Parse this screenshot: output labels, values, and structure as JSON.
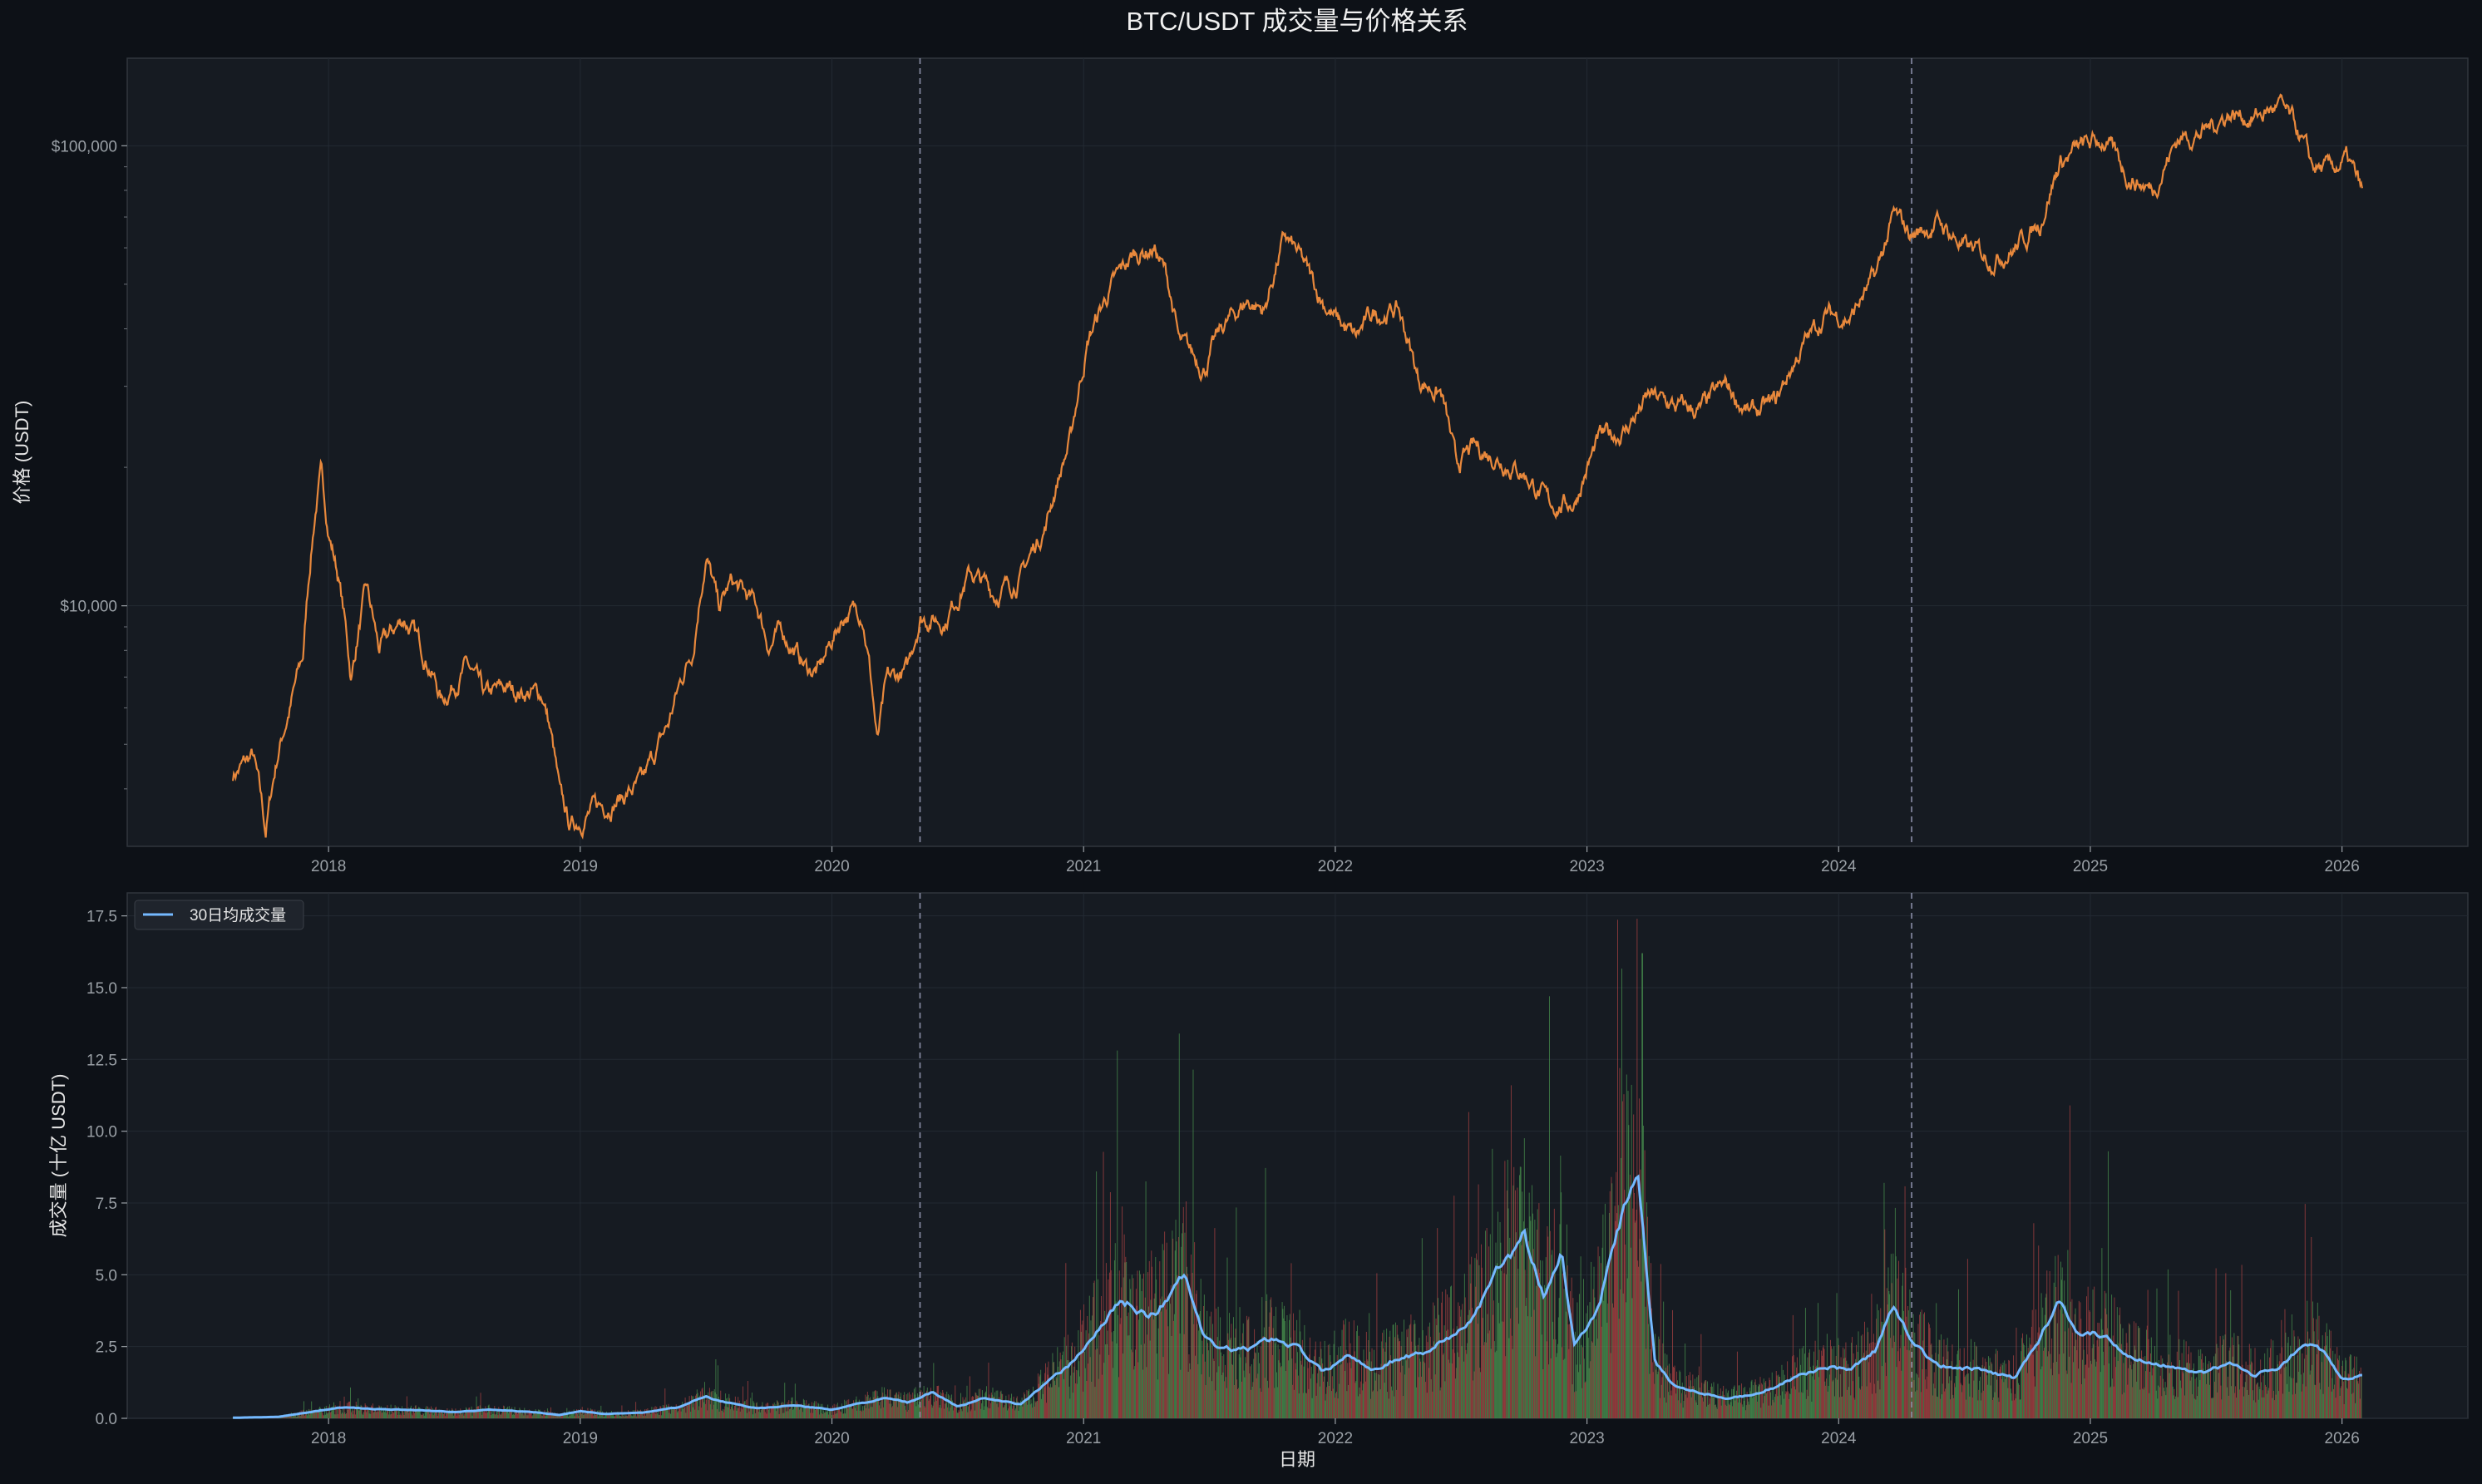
{
  "chart_data": {
    "title": "BTC/USDT 成交量与价格关系",
    "xlabel": "日期",
    "x_ticks": [
      "2018",
      "2019",
      "2020",
      "2021",
      "2022",
      "2023",
      "2024",
      "2025",
      "2026"
    ],
    "x_tick_years": [
      2018,
      2019,
      2020,
      2021,
      2022,
      2023,
      2024,
      2025,
      2026
    ],
    "x_range": [
      2017.2,
      2026.5
    ],
    "vlines": [
      2020.35,
      2024.29
    ],
    "colors": {
      "price": "#e8883c",
      "volume_avg": "#74b9ff",
      "volume_up": "#4c9a52",
      "volume_down": "#b54545",
      "plot_bg": "#161b22",
      "fig_bg": "#0d1117",
      "vline": "#8b8fa8"
    },
    "charts": [
      {
        "type": "line",
        "scale": "log",
        "ylabel": "价格 (USDT)",
        "y_ticks": [
          "$10,000",
          "$100,000"
        ],
        "y_tick_values": [
          10000,
          100000
        ],
        "ylim": [
          3000,
          155000
        ],
        "series": [
          {
            "values": [
              [
                2017.62,
                4300
              ],
              [
                2017.7,
                4700
              ],
              [
                2017.75,
                3200
              ],
              [
                2017.8,
                4800
              ],
              [
                2017.85,
                6100
              ],
              [
                2017.9,
                7800
              ],
              [
                2017.95,
                16500
              ],
              [
                2017.97,
                19200
              ],
              [
                2018.0,
                14500
              ],
              [
                2018.04,
                11500
              ],
              [
                2018.09,
                6900
              ],
              [
                2018.15,
                10800
              ],
              [
                2018.2,
                8000
              ],
              [
                2018.3,
                9400
              ],
              [
                2018.4,
                7500
              ],
              [
                2018.45,
                6200
              ],
              [
                2018.55,
                7400
              ],
              [
                2018.62,
                6300
              ],
              [
                2018.7,
                6600
              ],
              [
                2018.85,
                6400
              ],
              [
                2018.88,
                5400
              ],
              [
                2018.92,
                3800
              ],
              [
                2018.96,
                3300
              ],
              [
                2019.05,
                3600
              ],
              [
                2019.15,
                3800
              ],
              [
                2019.25,
                4100
              ],
              [
                2019.35,
                5500
              ],
              [
                2019.45,
                8200
              ],
              [
                2019.5,
                12900
              ],
              [
                2019.55,
                9800
              ],
              [
                2019.6,
                11200
              ],
              [
                2019.7,
                10000
              ],
              [
                2019.75,
                8200
              ],
              [
                2019.8,
                8800
              ],
              [
                2019.9,
                7300
              ],
              [
                2019.95,
                7200
              ],
              [
                2020.05,
                9600
              ],
              [
                2020.12,
                9800
              ],
              [
                2020.18,
                5000
              ],
              [
                2020.22,
                6800
              ],
              [
                2020.3,
                7200
              ],
              [
                2020.35,
                9500
              ],
              [
                2020.45,
                9300
              ],
              [
                2020.55,
                11800
              ],
              [
                2020.65,
                10600
              ],
              [
                2020.75,
                11500
              ],
              [
                2020.85,
                15000
              ],
              [
                2020.95,
                23000
              ],
              [
                2021.02,
                38000
              ],
              [
                2021.1,
                48000
              ],
              [
                2021.2,
                58000
              ],
              [
                2021.28,
                60000
              ],
              [
                2021.33,
                52000
              ],
              [
                2021.38,
                37000
              ],
              [
                2021.48,
                33000
              ],
              [
                2021.55,
                40000
              ],
              [
                2021.65,
                46000
              ],
              [
                2021.72,
                44000
              ],
              [
                2021.8,
                63000
              ],
              [
                2021.85,
                58000
              ],
              [
                2021.93,
                48000
              ],
              [
                2022.0,
                42000
              ],
              [
                2022.08,
                38000
              ],
              [
                2022.15,
                43000
              ],
              [
                2022.25,
                44000
              ],
              [
                2022.33,
                31000
              ],
              [
                2022.42,
                29000
              ],
              [
                2022.48,
                20000
              ],
              [
                2022.55,
                22000
              ],
              [
                2022.65,
                21000
              ],
              [
                2022.75,
                19500
              ],
              [
                2022.85,
                16500
              ],
              [
                2022.95,
                16800
              ],
              [
                2023.05,
                23000
              ],
              [
                2023.15,
                24000
              ],
              [
                2023.25,
                28500
              ],
              [
                2023.35,
                27000
              ],
              [
                2023.45,
                26500
              ],
              [
                2023.55,
                30000
              ],
              [
                2023.65,
                26000
              ],
              [
                2023.75,
                27500
              ],
              [
                2023.85,
                36000
              ],
              [
                2023.95,
                43000
              ],
              [
                2024.05,
                42500
              ],
              [
                2024.15,
                52000
              ],
              [
                2024.22,
                70000
              ],
              [
                2024.29,
                64000
              ],
              [
                2024.4,
                68000
              ],
              [
                2024.5,
                60000
              ],
              [
                2024.6,
                57000
              ],
              [
                2024.7,
                60000
              ],
              [
                2024.8,
                68000
              ],
              [
                2024.88,
                92000
              ],
              [
                2024.95,
                98000
              ],
              [
                2025.05,
                103000
              ],
              [
                2025.15,
                86000
              ],
              [
                2025.25,
                80000
              ],
              [
                2025.35,
                104000
              ],
              [
                2025.45,
                107000
              ],
              [
                2025.55,
                118000
              ],
              [
                2025.65,
                115000
              ],
              [
                2025.75,
                122000
              ],
              [
                2025.82,
                108000
              ],
              [
                2025.88,
                90000
              ],
              [
                2025.95,
                88000
              ],
              [
                2026.02,
                93000
              ],
              [
                2026.08,
                79000
              ]
            ]
          }
        ]
      },
      {
        "type": "bar+line",
        "ylabel": "成交量 (十亿 USDT)",
        "y_ticks": [
          "0.0",
          "2.5",
          "5.0",
          "7.5",
          "10.0",
          "12.5",
          "15.0",
          "17.5"
        ],
        "y_tick_values": [
          0,
          2.5,
          5,
          7.5,
          10,
          12.5,
          15,
          17.5
        ],
        "ylim": [
          0,
          18.3
        ],
        "legend": {
          "position": "top-left",
          "entries": [
            "30日均成交量"
          ]
        },
        "series": [
          {
            "name": "30日均成交量",
            "values": [
              [
                2017.62,
                0.02
              ],
              [
                2017.8,
                0.05
              ],
              [
                2017.95,
                0.25
              ],
              [
                2018.05,
                0.38
              ],
              [
                2018.2,
                0.32
              ],
              [
                2018.35,
                0.28
              ],
              [
                2018.5,
                0.22
              ],
              [
                2018.65,
                0.3
              ],
              [
                2018.8,
                0.22
              ],
              [
                2018.92,
                0.12
              ],
              [
                2019.0,
                0.25
              ],
              [
                2019.1,
                0.15
              ],
              [
                2019.25,
                0.2
              ],
              [
                2019.4,
                0.4
              ],
              [
                2019.5,
                0.8
              ],
              [
                2019.55,
                0.6
              ],
              [
                2019.7,
                0.35
              ],
              [
                2019.85,
                0.45
              ],
              [
                2020.0,
                0.3
              ],
              [
                2020.1,
                0.5
              ],
              [
                2020.22,
                0.7
              ],
              [
                2020.3,
                0.55
              ],
              [
                2020.4,
                0.9
              ],
              [
                2020.5,
                0.4
              ],
              [
                2020.6,
                0.7
              ],
              [
                2020.75,
                0.5
              ],
              [
                2020.85,
                1.2
              ],
              [
                2020.95,
                1.9
              ],
              [
                2021.05,
                3.0
              ],
              [
                2021.15,
                4.1
              ],
              [
                2021.25,
                3.6
              ],
              [
                2021.3,
                3.8
              ],
              [
                2021.4,
                5.0
              ],
              [
                2021.48,
                2.8
              ],
              [
                2021.55,
                2.4
              ],
              [
                2021.65,
                2.4
              ],
              [
                2021.75,
                2.8
              ],
              [
                2021.85,
                2.5
              ],
              [
                2021.95,
                1.6
              ],
              [
                2022.05,
                2.2
              ],
              [
                2022.15,
                1.7
              ],
              [
                2022.25,
                2.1
              ],
              [
                2022.35,
                2.3
              ],
              [
                2022.45,
                2.8
              ],
              [
                2022.55,
                3.5
              ],
              [
                2022.65,
                5.2
              ],
              [
                2022.75,
                6.4
              ],
              [
                2022.83,
                4.3
              ],
              [
                2022.9,
                5.8
              ],
              [
                2022.95,
                2.5
              ],
              [
                2023.05,
                4.0
              ],
              [
                2023.12,
                6.4
              ],
              [
                2023.2,
                8.9
              ],
              [
                2023.27,
                2.0
              ],
              [
                2023.35,
                1.1
              ],
              [
                2023.45,
                0.9
              ],
              [
                2023.55,
                0.7
              ],
              [
                2023.65,
                0.8
              ],
              [
                2023.75,
                1.1
              ],
              [
                2023.85,
                1.5
              ],
              [
                2023.95,
                1.8
              ],
              [
                2024.05,
                1.7
              ],
              [
                2024.15,
                2.4
              ],
              [
                2024.22,
                4.0
              ],
              [
                2024.3,
                2.6
              ],
              [
                2024.4,
                1.8
              ],
              [
                2024.55,
                1.7
              ],
              [
                2024.7,
                1.4
              ],
              [
                2024.8,
                2.8
              ],
              [
                2024.88,
                4.2
              ],
              [
                2024.95,
                3.0
              ],
              [
                2025.05,
                2.9
              ],
              [
                2025.15,
                2.2
              ],
              [
                2025.25,
                1.9
              ],
              [
                2025.35,
                1.8
              ],
              [
                2025.45,
                1.6
              ],
              [
                2025.55,
                1.9
              ],
              [
                2025.65,
                1.5
              ],
              [
                2025.75,
                1.8
              ],
              [
                2025.85,
                2.6
              ],
              [
                2025.92,
                2.4
              ],
              [
                2026.0,
                1.3
              ],
              [
                2026.08,
                1.5
              ]
            ]
          }
        ]
      }
    ]
  }
}
